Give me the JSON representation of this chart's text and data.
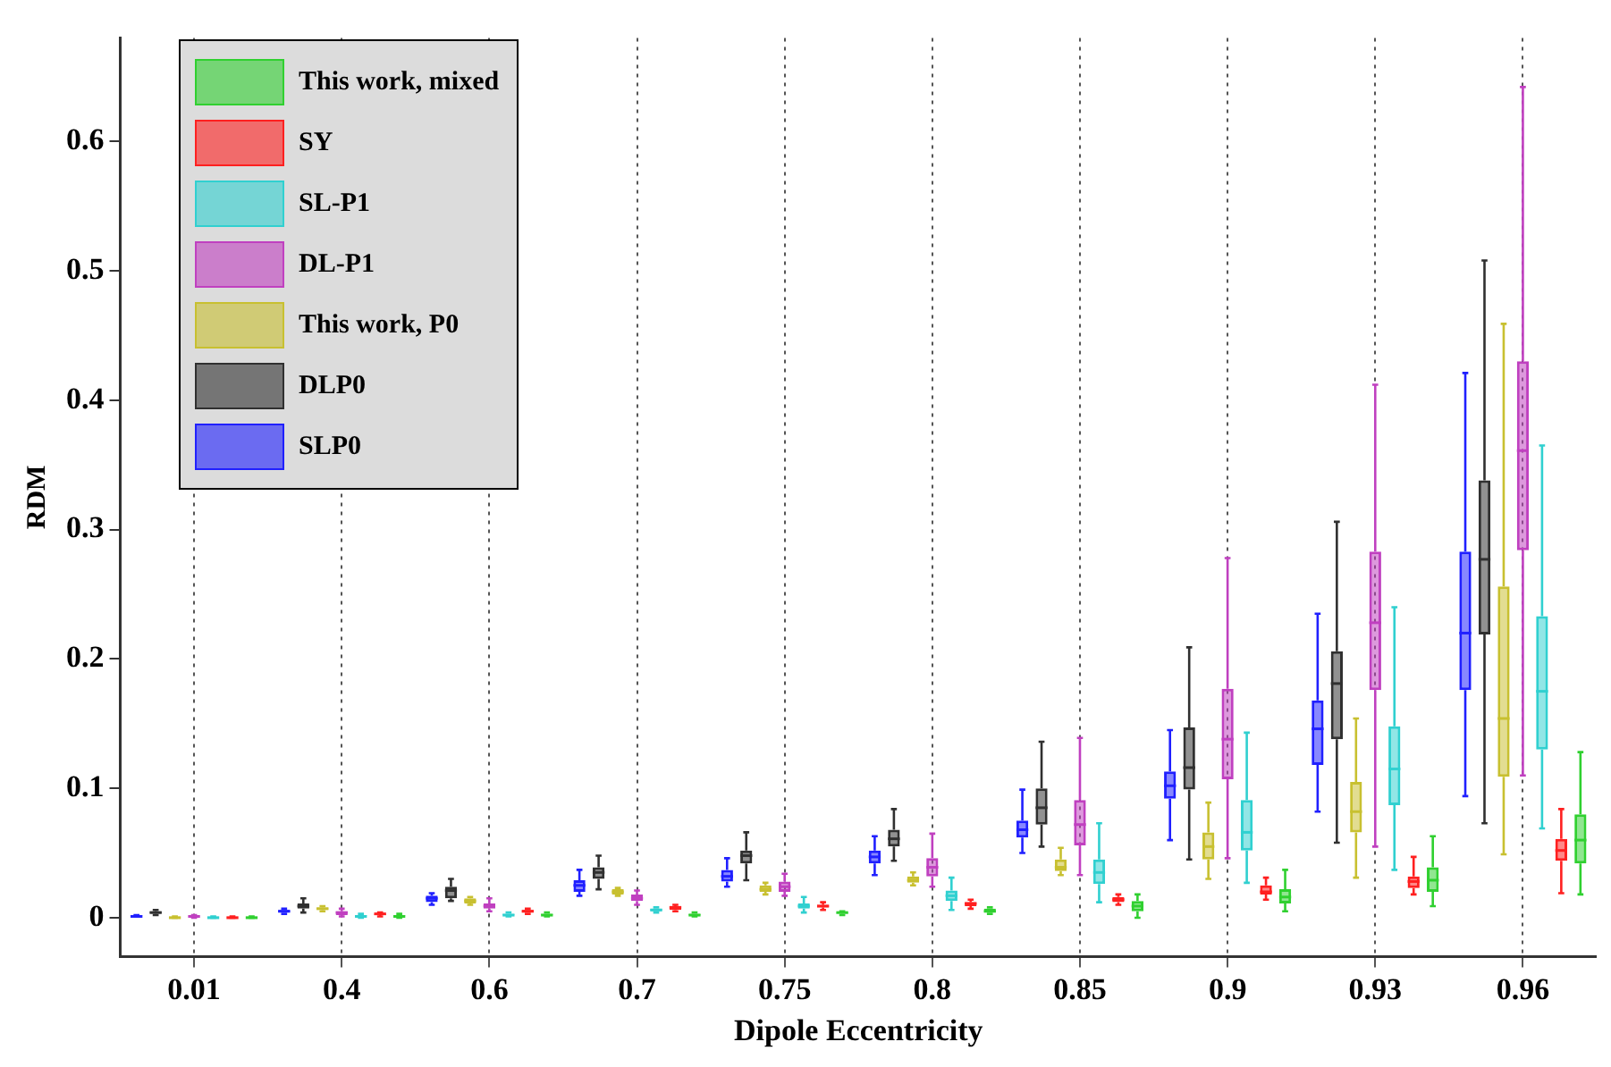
{
  "chart_data": {
    "type": "box",
    "xlabel": "Dipole Eccentricity",
    "ylabel": "RDM",
    "categories": [
      "0.01",
      "0.4",
      "0.6",
      "0.7",
      "0.75",
      "0.8",
      "0.85",
      "0.9",
      "0.93",
      "0.96"
    ],
    "ylim": [
      -0.03,
      0.68
    ],
    "yticks": [
      0,
      0.1,
      0.2,
      0.3,
      0.4,
      0.5,
      0.6
    ],
    "grid": "x",
    "legend": "top left",
    "series": [
      {
        "name": "SLP0",
        "color": "#2020ff",
        "boxes": [
          {
            "low": 0.001,
            "q1": 0.001,
            "median": 0.001,
            "q3": 0.002,
            "high": 0.002
          },
          {
            "low": 0.003,
            "q1": 0.004,
            "median": 0.005,
            "q3": 0.006,
            "high": 0.007
          },
          {
            "low": 0.01,
            "q1": 0.012,
            "median": 0.015,
            "q3": 0.017,
            "high": 0.019
          },
          {
            "low": 0.017,
            "q1": 0.02,
            "median": 0.025,
            "q3": 0.029,
            "high": 0.037
          },
          {
            "low": 0.024,
            "q1": 0.028,
            "median": 0.032,
            "q3": 0.037,
            "high": 0.046
          },
          {
            "low": 0.033,
            "q1": 0.042,
            "median": 0.047,
            "q3": 0.052,
            "high": 0.063
          },
          {
            "low": 0.05,
            "q1": 0.062,
            "median": 0.068,
            "q3": 0.075,
            "high": 0.099
          },
          {
            "low": 0.06,
            "q1": 0.092,
            "median": 0.102,
            "q3": 0.113,
            "high": 0.145
          },
          {
            "low": 0.082,
            "q1": 0.118,
            "median": 0.146,
            "q3": 0.168,
            "high": 0.235
          },
          {
            "low": 0.094,
            "q1": 0.176,
            "median": 0.22,
            "q3": 0.283,
            "high": 0.421
          }
        ]
      },
      {
        "name": "DLP0",
        "color": "#303030",
        "boxes": [
          {
            "low": 0.002,
            "q1": 0.003,
            "median": 0.004,
            "q3": 0.005,
            "high": 0.006
          },
          {
            "low": 0.004,
            "q1": 0.007,
            "median": 0.009,
            "q3": 0.011,
            "high": 0.015
          },
          {
            "low": 0.013,
            "q1": 0.015,
            "median": 0.021,
            "q3": 0.024,
            "high": 0.03
          },
          {
            "low": 0.022,
            "q1": 0.03,
            "median": 0.035,
            "q3": 0.039,
            "high": 0.048
          },
          {
            "low": 0.029,
            "q1": 0.042,
            "median": 0.048,
            "q3": 0.052,
            "high": 0.066
          },
          {
            "low": 0.044,
            "q1": 0.055,
            "median": 0.061,
            "q3": 0.068,
            "high": 0.084
          },
          {
            "low": 0.055,
            "q1": 0.072,
            "median": 0.085,
            "q3": 0.1,
            "high": 0.136
          },
          {
            "low": 0.045,
            "q1": 0.099,
            "median": 0.116,
            "q3": 0.147,
            "high": 0.209
          },
          {
            "low": 0.058,
            "q1": 0.138,
            "median": 0.181,
            "q3": 0.206,
            "high": 0.306
          },
          {
            "low": 0.073,
            "q1": 0.219,
            "median": 0.277,
            "q3": 0.338,
            "high": 0.508
          }
        ]
      },
      {
        "name": "This work, P0",
        "color": "#c8c030",
        "boxes": [
          {
            "low": 0,
            "q1": 0,
            "median": 0,
            "q3": 0.001,
            "high": 0.001
          },
          {
            "low": 0.005,
            "q1": 0.006,
            "median": 0.007,
            "q3": 0.008,
            "high": 0.009
          },
          {
            "low": 0.01,
            "q1": 0.011,
            "median": 0.013,
            "q3": 0.015,
            "high": 0.016
          },
          {
            "low": 0.017,
            "q1": 0.018,
            "median": 0.02,
            "q3": 0.022,
            "high": 0.023
          },
          {
            "low": 0.018,
            "q1": 0.02,
            "median": 0.022,
            "q3": 0.025,
            "high": 0.027
          },
          {
            "low": 0.025,
            "q1": 0.027,
            "median": 0.029,
            "q3": 0.032,
            "high": 0.035
          },
          {
            "low": 0.033,
            "q1": 0.036,
            "median": 0.039,
            "q3": 0.045,
            "high": 0.054
          },
          {
            "low": 0.03,
            "q1": 0.045,
            "median": 0.055,
            "q3": 0.066,
            "high": 0.089
          },
          {
            "low": 0.031,
            "q1": 0.066,
            "median": 0.082,
            "q3": 0.105,
            "high": 0.154
          },
          {
            "low": 0.049,
            "q1": 0.109,
            "median": 0.154,
            "q3": 0.256,
            "high": 0.459
          }
        ]
      },
      {
        "name": "DL-P1",
        "color": "#c040c0",
        "boxes": [
          {
            "low": 0,
            "q1": 0,
            "median": 0.001,
            "q3": 0.001,
            "high": 0.002
          },
          {
            "low": 0.001,
            "q1": 0.002,
            "median": 0.004,
            "q3": 0.005,
            "high": 0.007
          },
          {
            "low": 0.005,
            "q1": 0.007,
            "median": 0.009,
            "q3": 0.011,
            "high": 0.015
          },
          {
            "low": 0.01,
            "q1": 0.013,
            "median": 0.015,
            "q3": 0.018,
            "high": 0.021
          },
          {
            "low": 0.017,
            "q1": 0.02,
            "median": 0.024,
            "q3": 0.028,
            "high": 0.034
          },
          {
            "low": 0.024,
            "q1": 0.032,
            "median": 0.039,
            "q3": 0.046,
            "high": 0.065
          },
          {
            "low": 0.033,
            "q1": 0.056,
            "median": 0.072,
            "q3": 0.091,
            "high": 0.139
          },
          {
            "low": 0.046,
            "q1": 0.107,
            "median": 0.138,
            "q3": 0.177,
            "high": 0.278
          },
          {
            "low": 0.055,
            "q1": 0.176,
            "median": 0.228,
            "q3": 0.283,
            "high": 0.412
          },
          {
            "low": 0.11,
            "q1": 0.284,
            "median": 0.361,
            "q3": 0.43,
            "high": 0.642
          }
        ]
      },
      {
        "name": "SL-P1",
        "color": "#30d0d0",
        "boxes": [
          {
            "low": 0,
            "q1": 0,
            "median": 0,
            "q3": 0.001,
            "high": 0.001
          },
          {
            "low": 0,
            "q1": 0.001,
            "median": 0.001,
            "q3": 0.002,
            "high": 0.003
          },
          {
            "low": 0.001,
            "q1": 0.002,
            "median": 0.002,
            "q3": 0.003,
            "high": 0.004
          },
          {
            "low": 0.004,
            "q1": 0.005,
            "median": 0.006,
            "q3": 0.007,
            "high": 0.008
          },
          {
            "low": 0.004,
            "q1": 0.007,
            "median": 0.009,
            "q3": 0.011,
            "high": 0.016
          },
          {
            "low": 0.006,
            "q1": 0.013,
            "median": 0.017,
            "q3": 0.021,
            "high": 0.031
          },
          {
            "low": 0.012,
            "q1": 0.026,
            "median": 0.035,
            "q3": 0.045,
            "high": 0.073
          },
          {
            "low": 0.027,
            "q1": 0.052,
            "median": 0.066,
            "q3": 0.091,
            "high": 0.143
          },
          {
            "low": 0.037,
            "q1": 0.087,
            "median": 0.115,
            "q3": 0.148,
            "high": 0.24
          },
          {
            "low": 0.069,
            "q1": 0.13,
            "median": 0.175,
            "q3": 0.233,
            "high": 0.365
          }
        ]
      },
      {
        "name": "SY",
        "color": "#ff2020",
        "boxes": [
          {
            "low": 0,
            "q1": 0,
            "median": 0,
            "q3": 0.001,
            "high": 0.001
          },
          {
            "low": 0.001,
            "q1": 0.002,
            "median": 0.003,
            "q3": 0.003,
            "high": 0.004
          },
          {
            "low": 0.003,
            "q1": 0.004,
            "median": 0.005,
            "q3": 0.006,
            "high": 0.007
          },
          {
            "low": 0.005,
            "q1": 0.006,
            "median": 0.008,
            "q3": 0.009,
            "high": 0.01
          },
          {
            "low": 0.006,
            "q1": 0.008,
            "median": 0.009,
            "q3": 0.01,
            "high": 0.012
          },
          {
            "low": 0.007,
            "q1": 0.009,
            "median": 0.011,
            "q3": 0.012,
            "high": 0.014
          },
          {
            "low": 0.01,
            "q1": 0.012,
            "median": 0.014,
            "q3": 0.016,
            "high": 0.018
          },
          {
            "low": 0.014,
            "q1": 0.018,
            "median": 0.02,
            "q3": 0.025,
            "high": 0.031
          },
          {
            "low": 0.018,
            "q1": 0.023,
            "median": 0.028,
            "q3": 0.032,
            "high": 0.047
          },
          {
            "low": 0.019,
            "q1": 0.044,
            "median": 0.052,
            "q3": 0.061,
            "high": 0.084
          }
        ]
      },
      {
        "name": "This work, mixed",
        "color": "#30d030",
        "boxes": [
          {
            "low": 0,
            "q1": 0,
            "median": 0,
            "q3": 0.001,
            "high": 0.001
          },
          {
            "low": 0,
            "q1": 0.001,
            "median": 0.001,
            "q3": 0.002,
            "high": 0.003
          },
          {
            "low": 0.001,
            "q1": 0.002,
            "median": 0.002,
            "q3": 0.003,
            "high": 0.004
          },
          {
            "low": 0.001,
            "q1": 0.002,
            "median": 0.002,
            "q3": 0.003,
            "high": 0.004
          },
          {
            "low": 0.002,
            "q1": 0.003,
            "median": 0.004,
            "q3": 0.004,
            "high": 0.005
          },
          {
            "low": 0.003,
            "q1": 0.004,
            "median": 0.005,
            "q3": 0.007,
            "high": 0.008
          },
          {
            "low": 0,
            "q1": 0.005,
            "median": 0.009,
            "q3": 0.013,
            "high": 0.018
          },
          {
            "low": 0.005,
            "q1": 0.011,
            "median": 0.016,
            "q3": 0.022,
            "high": 0.037
          },
          {
            "low": 0.009,
            "q1": 0.02,
            "median": 0.029,
            "q3": 0.039,
            "high": 0.063
          },
          {
            "low": 0.018,
            "q1": 0.042,
            "median": 0.06,
            "q3": 0.08,
            "high": 0.128
          }
        ]
      }
    ]
  }
}
